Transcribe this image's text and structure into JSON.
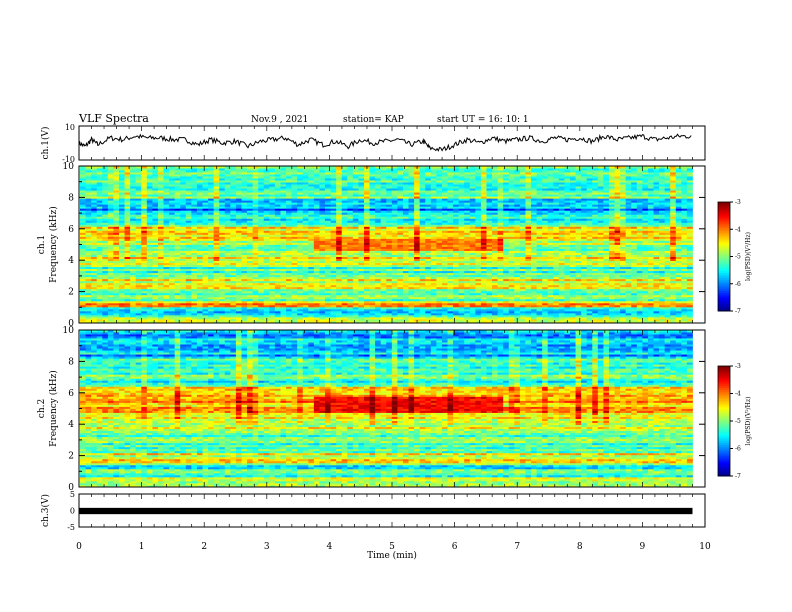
{
  "header": {
    "title": "VLF Spectra",
    "date": "Nov.9 , 2021",
    "station": "station= KAP",
    "start": "start UT =  16: 10: 1"
  },
  "colors": {
    "jet": [
      "#00007f",
      "#0000ff",
      "#007fff",
      "#00ffff",
      "#7fff7f",
      "#ffff00",
      "#ff7f00",
      "#ff0000",
      "#7f0000"
    ]
  },
  "chart_data": [
    {
      "type": "line",
      "panel": "ch1",
      "ylabel": "ch.1(V)",
      "ylim": [
        -10,
        10
      ],
      "yticks": [
        "10",
        "-10"
      ],
      "xlim": [
        0,
        10
      ],
      "series": [
        {
          "color": "#000000",
          "x": [
            0,
            0.1,
            0.2,
            0.3,
            0.5,
            0.7,
            0.9,
            1.1,
            1.3,
            1.5,
            1.7,
            1.9,
            2.1,
            2.3,
            2.5,
            2.7,
            2.9,
            3.1,
            3.3,
            3.5,
            3.7,
            3.9,
            4.1,
            4.3,
            4.5,
            4.7,
            4.9,
            5.1,
            5.3,
            5.5,
            5.6,
            5.8,
            6.0,
            6.2,
            6.4,
            6.6,
            6.8,
            7.0,
            7.2,
            7.4,
            7.6,
            7.8,
            8.0,
            8.2,
            8.4,
            8.6,
            8.8,
            9.0,
            9.2,
            9.4,
            9.6,
            9.8
          ],
          "y": [
            0,
            -2,
            2,
            -1,
            3,
            2,
            4,
            3,
            3,
            2,
            2,
            -1,
            2,
            0,
            1,
            -2,
            1,
            2,
            3,
            -1,
            2,
            -1,
            1,
            -2,
            2,
            0,
            1,
            2,
            -1,
            1,
            -3,
            -4,
            -1,
            2,
            0,
            3,
            1,
            2,
            3,
            1,
            3,
            2,
            3,
            1,
            4,
            2,
            3,
            4,
            2,
            3,
            4,
            4
          ]
        }
      ]
    },
    {
      "type": "heatmap",
      "panel": "ch1-spectrogram",
      "ylabel": "ch.1 Frequency (kHz)",
      "ylim": [
        0,
        10
      ],
      "yticks": [
        "0",
        "2",
        "4",
        "6",
        "8",
        "10"
      ],
      "xlim": [
        0,
        10
      ],
      "colorbar": {
        "label": "log(PSD)(V²/Hz)",
        "range": [
          -7,
          -3
        ],
        "ticks": [
          "-3",
          "-4",
          "-5",
          "-6",
          "-7"
        ]
      },
      "bands": [
        {
          "f": [
            0.0,
            0.4
          ],
          "level": -4.4
        },
        {
          "f": [
            0.4,
            1.0
          ],
          "level": -5.6
        },
        {
          "f": [
            1.0,
            1.4
          ],
          "level": -4.2
        },
        {
          "f": [
            1.4,
            2.2
          ],
          "level": -5.0
        },
        {
          "f": [
            2.2,
            2.8
          ],
          "level": -4.6
        },
        {
          "f": [
            2.8,
            3.6
          ],
          "level": -5.2
        },
        {
          "f": [
            3.6,
            4.2
          ],
          "level": -4.7
        },
        {
          "f": [
            4.2,
            5.4
          ],
          "level": -4.9
        },
        {
          "f": [
            5.4,
            6.2
          ],
          "level": -4.3
        },
        {
          "f": [
            6.2,
            7.0
          ],
          "level": -5.3
        },
        {
          "f": [
            7.0,
            8.0
          ],
          "level": -5.9
        },
        {
          "f": [
            8.0,
            10.0
          ],
          "level": -5.1
        }
      ],
      "events": [
        {
          "t": [
            3.7,
            6.8
          ],
          "f": [
            4.6,
            5.4
          ],
          "level": -4.0
        }
      ]
    },
    {
      "type": "heatmap",
      "panel": "ch2-spectrogram",
      "ylabel": "ch.2 Frequency (kHz)",
      "ylim": [
        0,
        10
      ],
      "yticks": [
        "0",
        "2",
        "4",
        "6",
        "8",
        "10"
      ],
      "xlim": [
        0,
        10
      ],
      "colorbar": {
        "label": "log(PSD)(V²/Hz)",
        "range": [
          -7,
          -3
        ],
        "ticks": [
          "-3",
          "-4",
          "-5",
          "-6",
          "-7"
        ]
      },
      "bands": [
        {
          "f": [
            0.0,
            0.6
          ],
          "level": -4.8
        },
        {
          "f": [
            0.6,
            1.4
          ],
          "level": -5.3
        },
        {
          "f": [
            1.4,
            2.2
          ],
          "level": -4.6
        },
        {
          "f": [
            2.2,
            3.4
          ],
          "level": -5.2
        },
        {
          "f": [
            3.4,
            4.6
          ],
          "level": -4.7
        },
        {
          "f": [
            4.6,
            6.4
          ],
          "level": -4.2
        },
        {
          "f": [
            6.4,
            8.2
          ],
          "level": -5.3
        },
        {
          "f": [
            8.2,
            10.0
          ],
          "level": -5.8
        }
      ],
      "events": [
        {
          "t": [
            3.7,
            6.8
          ],
          "f": [
            4.8,
            5.8
          ],
          "level": -3.5
        }
      ]
    },
    {
      "type": "line",
      "panel": "ch3",
      "ylabel": "ch.3(V)",
      "ylim": [
        -5,
        5
      ],
      "yticks": [
        "5",
        "0",
        "-5"
      ],
      "xlim": [
        0,
        10
      ],
      "xlabel": "Time (min)",
      "xticks": [
        "0",
        "1",
        "2",
        "3",
        "4",
        "5",
        "6",
        "7",
        "8",
        "9",
        "10"
      ],
      "series": [
        {
          "color": "#000000",
          "x": [
            0,
            9.8
          ],
          "y": [
            0.3,
            0.3
          ],
          "thickness_v": 1.0
        }
      ]
    }
  ]
}
